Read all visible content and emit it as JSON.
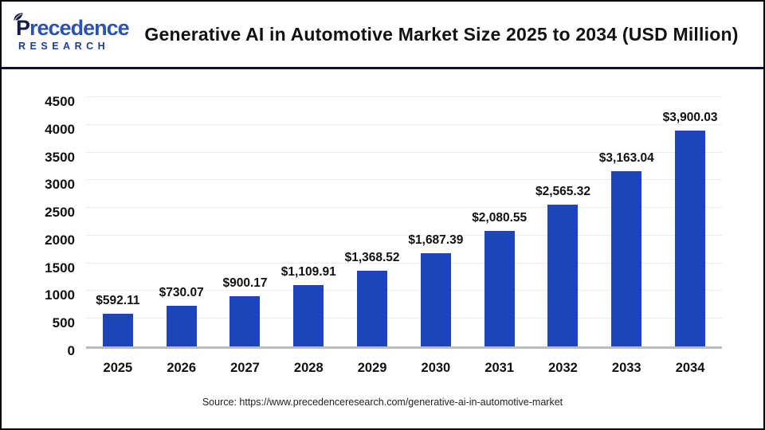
{
  "header": {
    "logo": {
      "initial": "P",
      "rest": "recedence",
      "subtitle": "RESEARCH"
    },
    "title": "Generative AI in Automotive Market Size 2025 to 2034 (USD Million)"
  },
  "chart_data": {
    "type": "bar",
    "title": "Generative AI in Automotive Market Size 2025 to 2034 (USD Million)",
    "categories": [
      "2025",
      "2026",
      "2027",
      "2028",
      "2029",
      "2030",
      "2031",
      "2032",
      "2033",
      "2034"
    ],
    "values": [
      592.11,
      730.07,
      900.17,
      1109.91,
      1368.52,
      1687.39,
      2080.55,
      2565.32,
      3163.04,
      3900.03
    ],
    "value_labels": [
      "$592.11",
      "$730.07",
      "$900.17",
      "$1,109.91",
      "$1,368.52",
      "$1,687.39",
      "$2,080.55",
      "$2,565.32",
      "$3,163.04",
      "$3,900.03"
    ],
    "xlabel": "",
    "ylabel": "",
    "ylim": [
      0,
      4500
    ],
    "ytick_step": 500,
    "yticks": [
      0,
      500,
      1000,
      1500,
      2000,
      2500,
      3000,
      3500,
      4000,
      4500
    ],
    "grid": true,
    "legend": false,
    "bar_color": "#1d44b8"
  },
  "colors": {
    "bar": "#1d44b8",
    "header_divider": "#0c1134",
    "gridline": "#ebebeb",
    "baseline": "#bcbcbc",
    "logo_dark": "#141a4a",
    "logo_blue": "#2b53b0"
  },
  "footer": {
    "source": "Source: https://www.precedenceresearch.com/generative-ai-in-automotive-market"
  }
}
